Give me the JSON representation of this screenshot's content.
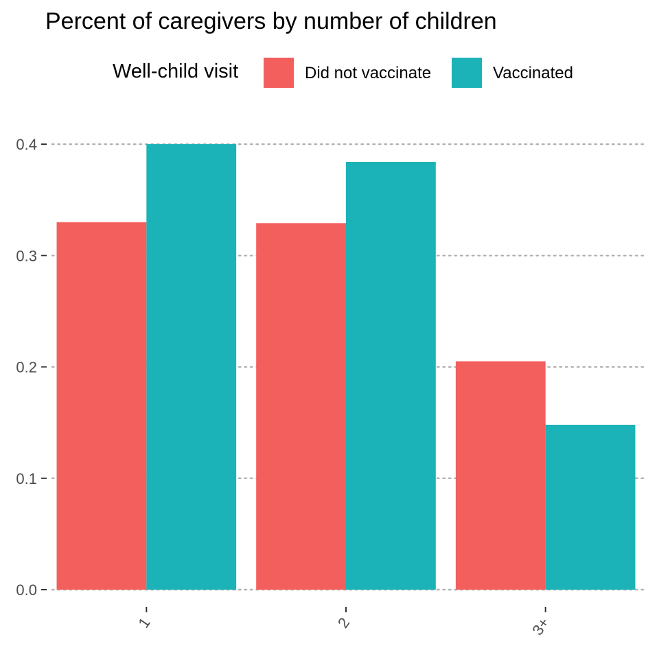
{
  "chart_data": {
    "type": "bar",
    "title": "Percent of caregivers by number of children",
    "xlabel": "",
    "ylabel": "",
    "categories": [
      "1",
      "2",
      "3+"
    ],
    "ylim": [
      0,
      0.4
    ],
    "yticks": [
      "0.0",
      "0.1",
      "0.2",
      "0.3",
      "0.4"
    ],
    "legend": {
      "title": "Well-child visit",
      "position": "top"
    },
    "series": [
      {
        "name": "Did not vaccinate",
        "color": "#F35F5D",
        "values": [
          0.33,
          0.329,
          0.205
        ]
      },
      {
        "name": "Vaccinated",
        "color": "#1BB3B8",
        "values": [
          0.4,
          0.384,
          0.148
        ]
      }
    ],
    "grid": "horizontal-dotted"
  }
}
